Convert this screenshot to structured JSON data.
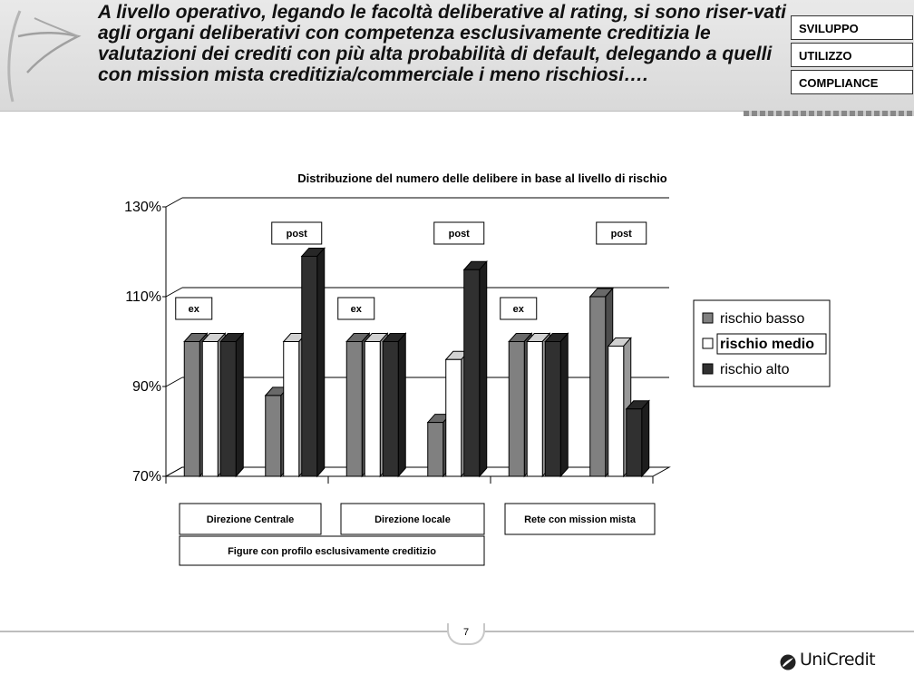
{
  "header": {
    "text": "A livello operativo, legando le facoltà deliberative al rating, si sono riser-vati agli organi deliberativi con competenza esclusivamente creditizia le valutazioni dei crediti con più alta probabilità di default, delegando a quelli con mission mista creditizia/commerciale i meno rischiosi….",
    "tabs": [
      "SVILUPPO",
      "UTILIZZO",
      "COMPLIANCE"
    ]
  },
  "chart_data": {
    "type": "bar",
    "title": "Distribuzione del numero delle delibere in base al livello di rischio",
    "categories": [
      "ex",
      "post",
      "ex",
      "post",
      "ex",
      "post"
    ],
    "ylim": [
      70,
      130
    ],
    "yticks": [
      "70%",
      "90%",
      "110%",
      "130%"
    ],
    "series": [
      {
        "name": "rischio basso",
        "color": "#808080",
        "values": [
          100,
          88,
          100,
          82,
          100,
          110
        ]
      },
      {
        "name": "rischio medio",
        "color": "#ffffff",
        "values": [
          100,
          100,
          100,
          96,
          100,
          99
        ]
      },
      {
        "name": "rischio alto",
        "color": "#303030",
        "values": [
          100,
          119,
          100,
          116,
          100,
          85
        ]
      }
    ],
    "group_labels": [
      "Direzione Centrale",
      "Direzione locale",
      "Rete con mission  mista"
    ],
    "super_label": "Figure con profilo esclusivamente creditizio",
    "legend": "right",
    "grid": true
  },
  "footer": {
    "page": "7",
    "brand": "UniCredit"
  },
  "colors": {
    "header_bg": "#dedede",
    "tab_border": "#333333"
  }
}
